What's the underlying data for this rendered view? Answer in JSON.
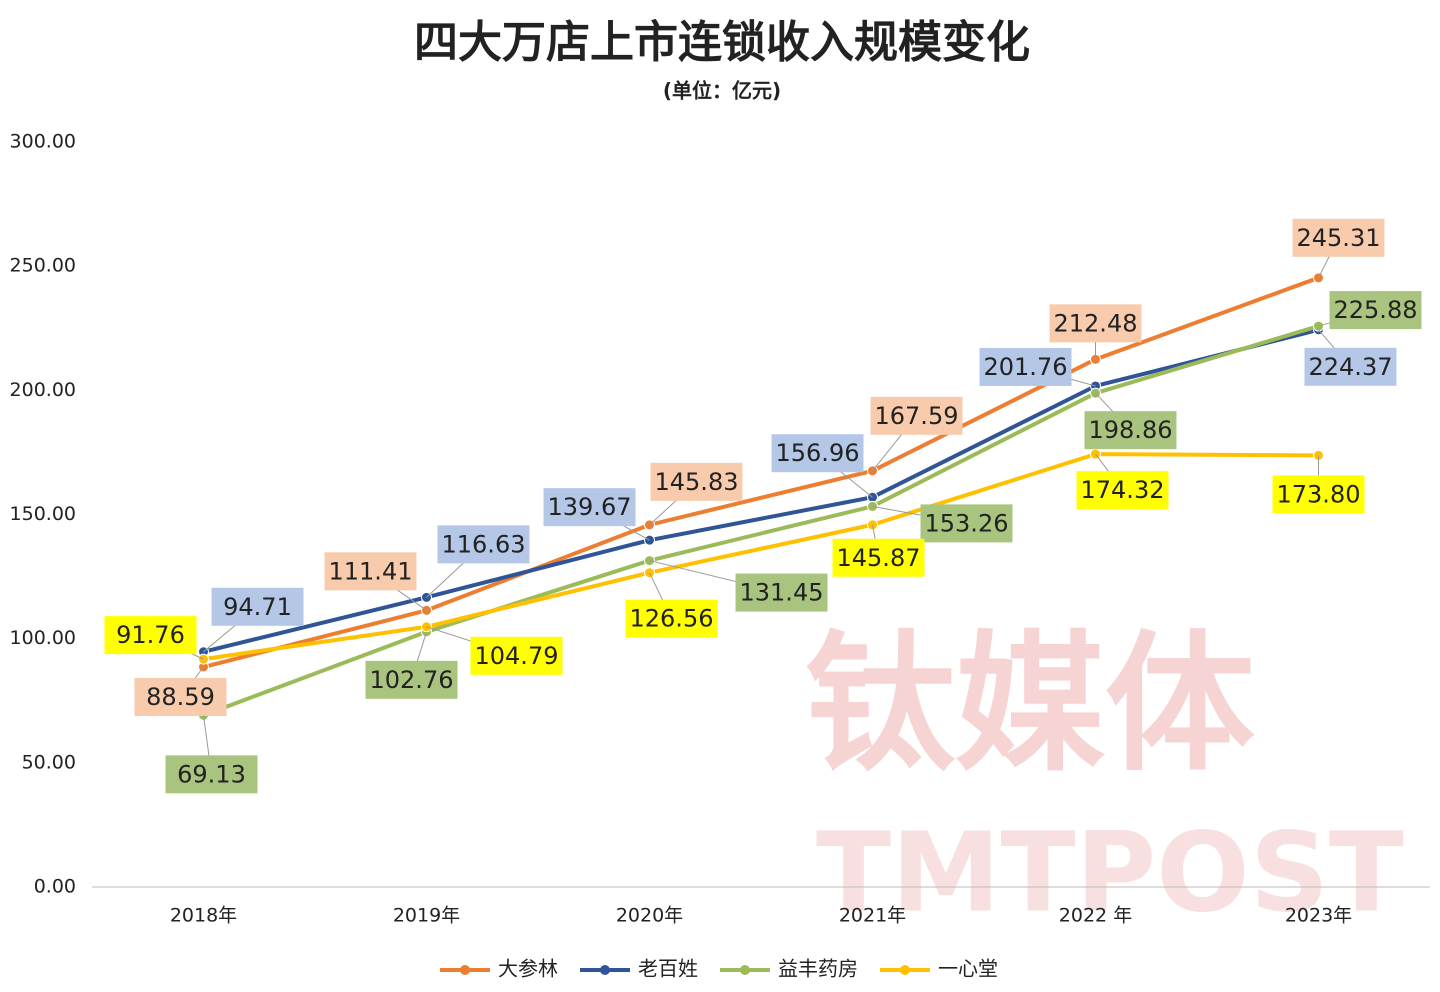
{
  "chart_data": {
    "type": "line",
    "title": "四大万店上市连锁收入规模变化",
    "subtitle": "(单位：亿元)",
    "watermark": [
      "钛媒体",
      "TMTPOST"
    ],
    "categories": [
      "2018年",
      "2019年",
      "2020年",
      "2021年",
      "2022 年",
      "2023年"
    ],
    "ylim": [
      0,
      300
    ],
    "yticks": [
      {
        "value": 0,
        "label": "0.00"
      },
      {
        "value": 50,
        "label": "50.00"
      },
      {
        "value": 100,
        "label": "100.00"
      },
      {
        "value": 150,
        "label": "150.00"
      },
      {
        "value": 200,
        "label": "200.00"
      },
      {
        "value": 250,
        "label": "250.00"
      },
      {
        "value": 300,
        "label": "300.00"
      }
    ],
    "grid": false,
    "legend": "bottom",
    "series": [
      {
        "name": "大参林",
        "color": "#ed7d31",
        "label_color": "#f8cbad",
        "values": [
          88.59,
          111.41,
          145.83,
          167.59,
          212.48,
          245.31
        ]
      },
      {
        "name": "老百姓",
        "color": "#2f5597",
        "label_color": "#b4c7e7",
        "values": [
          94.71,
          116.63,
          139.67,
          156.96,
          201.76,
          224.37
        ]
      },
      {
        "name": "益丰药房",
        "color": "#9bbb59",
        "label_color": "#a9c47f",
        "values": [
          69.13,
          102.76,
          131.45,
          153.26,
          198.86,
          225.88
        ]
      },
      {
        "name": "一心堂",
        "color": "#ffc000",
        "label_color": "#ffff00",
        "values": [
          91.76,
          104.79,
          126.56,
          145.87,
          174.32,
          173.8
        ],
        "value_labels": [
          "91.76",
          "104.79",
          "126.56",
          "145.87",
          "174.32",
          "173.80"
        ]
      }
    ]
  }
}
